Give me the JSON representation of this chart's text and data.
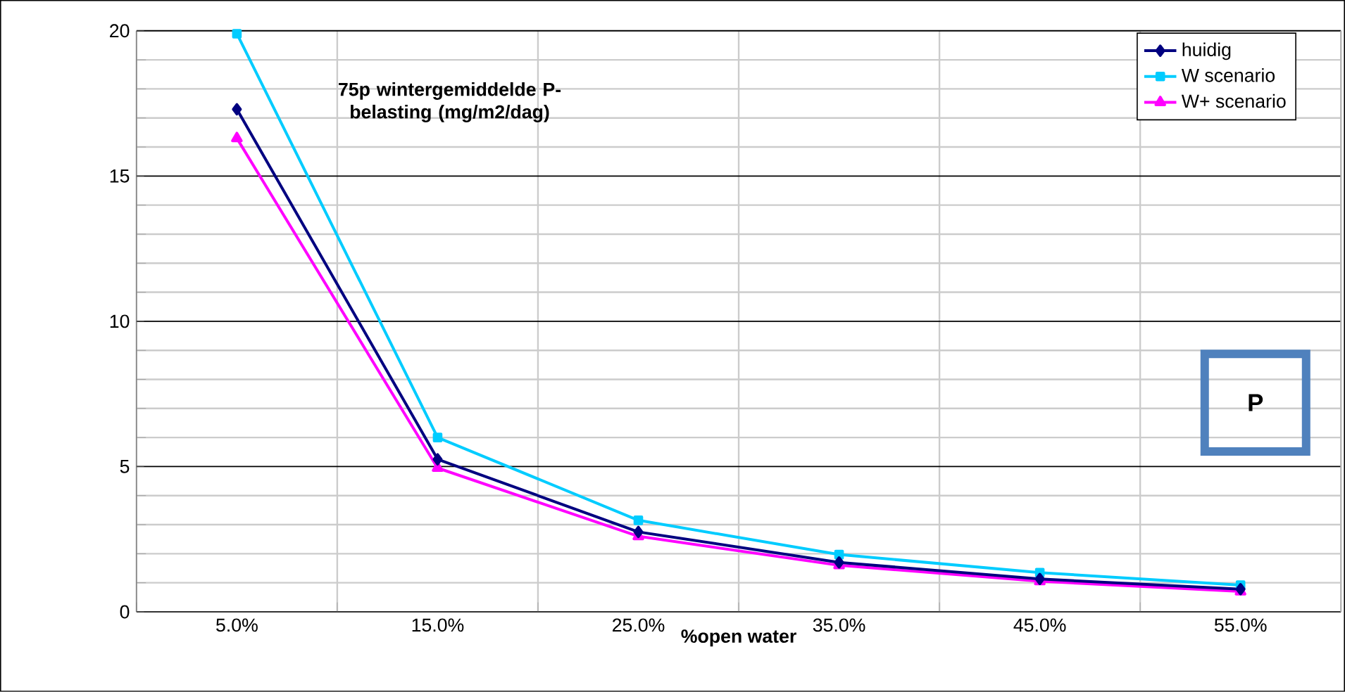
{
  "chart_data": {
    "type": "line",
    "title": "75p wintergemiddelde P-belasting (mg/m2/dag)",
    "xlabel": "%open water",
    "categories": [
      "5.0%",
      "15.0%",
      "25.0%",
      "35.0%",
      "45.0%",
      "55.0%"
    ],
    "series": [
      {
        "name": "huidig",
        "color": "#000080",
        "marker": "diamond",
        "values": [
          17.3,
          5.25,
          2.75,
          1.7,
          1.13,
          0.78
        ]
      },
      {
        "name": "W scenario",
        "color": "#00ccff",
        "marker": "square",
        "values": [
          19.9,
          6.0,
          3.15,
          1.97,
          1.35,
          0.92
        ]
      },
      {
        "name": "W+ scenario",
        "color": "#ff00ff",
        "marker": "triangle",
        "values": [
          16.3,
          4.95,
          2.6,
          1.6,
          1.05,
          0.7
        ]
      }
    ],
    "ylim": [
      0,
      20
    ],
    "yticks": [
      0,
      5,
      10,
      15,
      20
    ],
    "grid": true,
    "legend": "top right",
    "line_style": "solid",
    "annotations": [
      "P"
    ]
  }
}
